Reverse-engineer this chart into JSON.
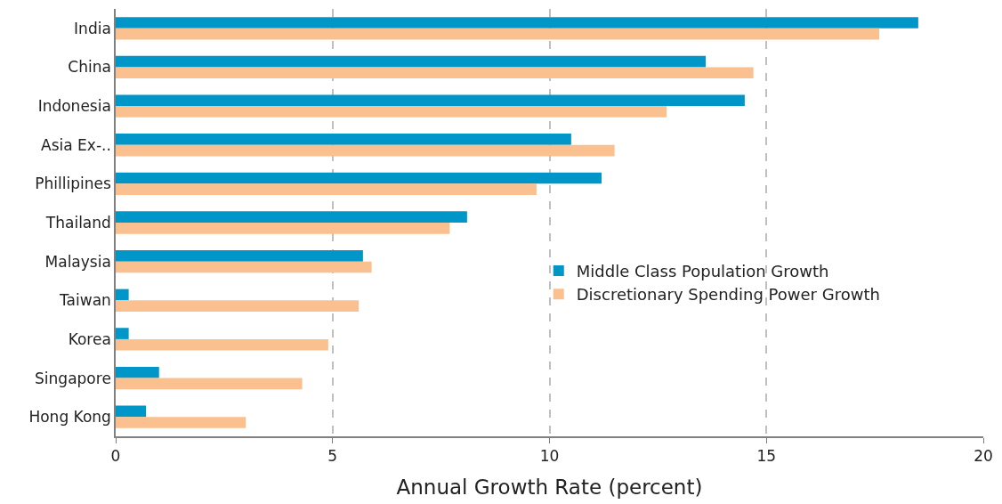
{
  "chart_data": {
    "type": "bar",
    "orientation": "horizontal",
    "xlabel": "Annual Growth Rate (percent)",
    "categories": [
      "India",
      "China",
      "Indonesia",
      "Asia Ex-..",
      "Phillipines",
      "Thailand",
      "Malaysia",
      "Taiwan",
      "Korea",
      "Singapore",
      "Hong Kong"
    ],
    "series": [
      {
        "name": "Middle Class Population Growth",
        "color": "#0096c8",
        "values": [
          18.5,
          13.6,
          14.5,
          10.5,
          11.2,
          8.1,
          5.7,
          0.3,
          0.3,
          1.0,
          0.7
        ]
      },
      {
        "name": "Discretionary Spending Power Growth",
        "color": "#fbc08f",
        "values": [
          17.6,
          14.7,
          12.7,
          11.5,
          9.7,
          7.7,
          5.9,
          5.6,
          4.9,
          4.3,
          3.0
        ]
      }
    ],
    "xlim": [
      0,
      20
    ],
    "xticks": [
      0,
      5,
      10,
      15,
      20
    ],
    "grid": "x",
    "legend": "right"
  }
}
